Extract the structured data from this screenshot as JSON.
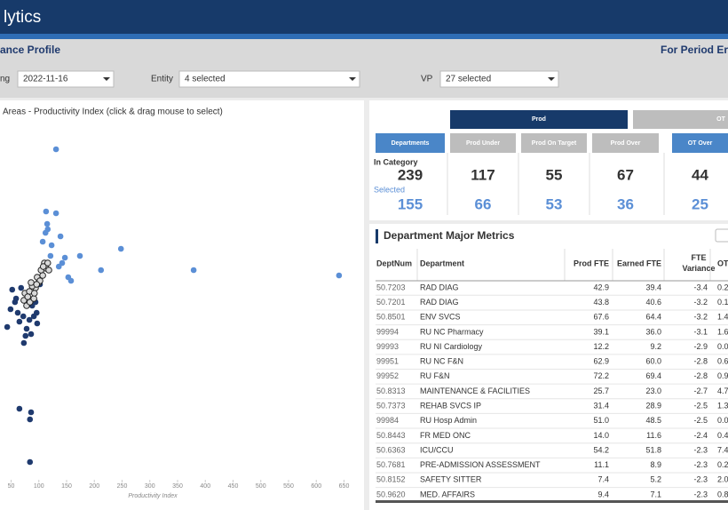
{
  "header": {
    "title": "lytics"
  },
  "subheader": {
    "title": "ance Profile",
    "period": "For Period Er"
  },
  "filters": [
    {
      "label": "ng",
      "value": "2022-11-16"
    },
    {
      "label": "Entity",
      "value": "4 selected"
    },
    {
      "label": "VP",
      "value": "27 selected"
    }
  ],
  "chart_data": {
    "type": "scatter",
    "title": "Areas - Productivity Index (click & drag mouse to select)",
    "x_label": "Productivity Index",
    "xlim": [
      30,
      670
    ],
    "ylim": [
      0,
      100
    ],
    "xticks": [
      50,
      100,
      150,
      200,
      250,
      300,
      350,
      400,
      450,
      500,
      550,
      600,
      650
    ],
    "series": [
      {
        "color": "#5b8fd6",
        "x": [
          131,
          113,
          131,
          115,
          116,
          112,
          139,
          107,
          123,
          248,
          174,
          147,
          121,
          212,
          379,
          641,
          153,
          158,
          136,
          142
        ],
        "y": [
          93,
          75.5,
          75,
          72,
          70.5,
          69.5,
          68.5,
          67,
          66,
          65,
          63,
          62.5,
          63,
          59,
          59,
          57.5,
          57,
          56,
          60,
          61
        ]
      },
      {
        "color": "#1f3a6e",
        "x": [
          52,
          68,
          59,
          49,
          62,
          88,
          94,
          72,
          91,
          65,
          43,
          78,
          97,
          86,
          73,
          65,
          86,
          84,
          84,
          102,
          57,
          76,
          96,
          83
        ],
        "y": [
          53.5,
          54,
          51,
          48,
          47,
          49,
          50,
          46,
          46,
          44.5,
          43,
          42.5,
          44,
          41,
          38.5,
          20,
          19,
          17,
          5,
          55,
          50,
          40.5,
          47,
          45
        ]
      },
      {
        "color": "#d9d9d9",
        "edge_color": "#222222",
        "x": [
          78,
          84,
          91,
          75,
          83,
          94,
          88,
          100,
          97,
          107,
          104,
          113,
          110,
          116,
          73,
          80,
          102,
          92,
          86,
          108,
          118,
          96
        ],
        "y": [
          49,
          50,
          51,
          52.5,
          53,
          54,
          54.5,
          55.5,
          57,
          57.5,
          59,
          59.5,
          61,
          61,
          50.5,
          51.5,
          56,
          52.5,
          55.5,
          60,
          59,
          55
        ]
      }
    ]
  },
  "metrics": {
    "tabs": [
      "Prod",
      "OT"
    ],
    "in_category_label": "In Category",
    "selected_label": "Selected",
    "columns": [
      {
        "button": "Departments",
        "in_category": "239",
        "selected": "155"
      },
      {
        "button": "Prod Under",
        "in_category": "117",
        "selected": "66"
      },
      {
        "button": "Prod On Target",
        "in_category": "55",
        "selected": "53"
      },
      {
        "button": "Prod Over",
        "in_category": "67",
        "selected": "36"
      },
      {
        "button": "OT Over",
        "in_category": "44",
        "selected": "25"
      }
    ]
  },
  "table": {
    "title": "Department Major Metrics",
    "columns": [
      "DeptNum",
      "Department",
      "Prod FTE",
      "Earned FTE",
      "FTE Variance",
      "OT"
    ],
    "rows": [
      [
        "50.7203",
        "RAD DIAG",
        "42.9",
        "39.4",
        "-3.4",
        "0.2"
      ],
      [
        "50.7201",
        "RAD DIAG",
        "43.8",
        "40.6",
        "-3.2",
        "0.1"
      ],
      [
        "50.8501",
        "ENV SVCS",
        "67.6",
        "64.4",
        "-3.2",
        "1.4"
      ],
      [
        "99994",
        "RU NC Pharmacy",
        "39.1",
        "36.0",
        "-3.1",
        "1.6"
      ],
      [
        "99993",
        "RU NI Cardiology",
        "12.2",
        "9.2",
        "-2.9",
        "0.0"
      ],
      [
        "99951",
        "RU NC F&N",
        "62.9",
        "60.0",
        "-2.8",
        "0.6"
      ],
      [
        "99952",
        "RU F&N",
        "72.2",
        "69.4",
        "-2.8",
        "0.9"
      ],
      [
        "50.8313",
        "MAINTENANCE & FACILITIES",
        "25.7",
        "23.0",
        "-2.7",
        "4.7"
      ],
      [
        "50.7373",
        "REHAB SVCS IP",
        "31.4",
        "28.9",
        "-2.5",
        "1.3"
      ],
      [
        "99984",
        "RU Hosp Admin",
        "51.0",
        "48.5",
        "-2.5",
        "0.0"
      ],
      [
        "50.8443",
        "FR MED ONC",
        "14.0",
        "11.6",
        "-2.4",
        "0.4"
      ],
      [
        "50.6363",
        "ICU/CCU",
        "54.2",
        "51.8",
        "-2.3",
        "7.4"
      ],
      [
        "50.7681",
        "PRE-ADMISSION ASSESSMENT",
        "11.1",
        "8.9",
        "-2.3",
        "0.2"
      ],
      [
        "50.8152",
        "SAFETY SITTER",
        "7.4",
        "5.2",
        "-2.3",
        "2.0"
      ],
      [
        "50.9620",
        "MED. AFFAIRS",
        "9.4",
        "7.1",
        "-2.3",
        "0.8"
      ]
    ]
  }
}
